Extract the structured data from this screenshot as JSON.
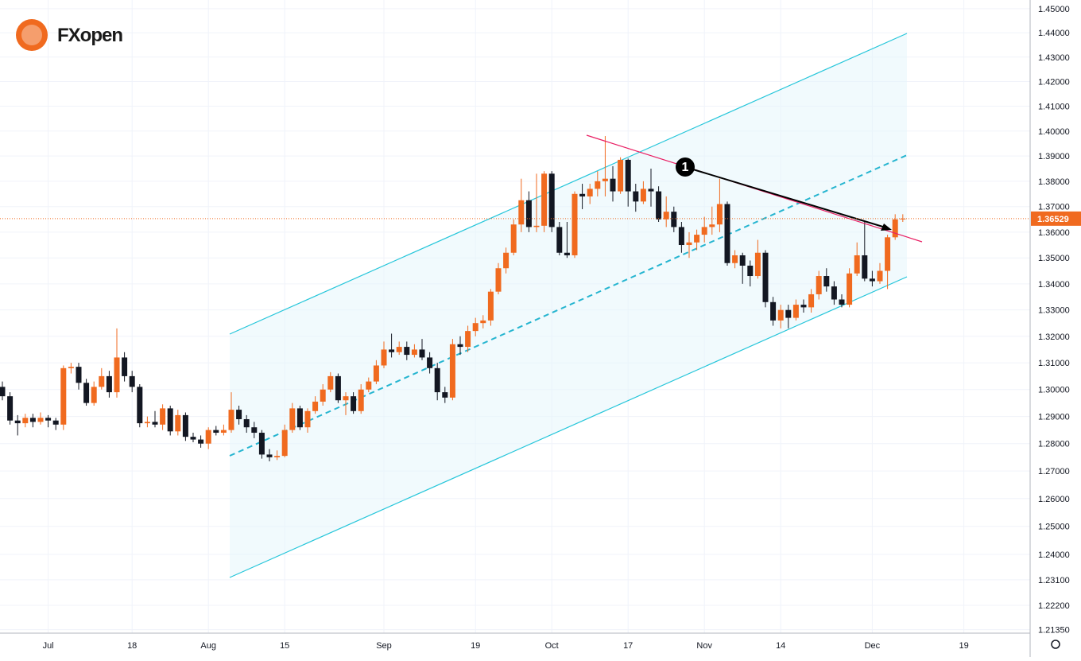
{
  "brand": "FXopen",
  "chart_data": {
    "type": "candlestick",
    "log_scale": true,
    "grid": true,
    "up_color": "#f06a1f",
    "down_color": "#131722",
    "annotation": "1",
    "ylim": [
      1.2123,
      1.4536
    ],
    "yticks": [
      {
        "value": 1.45,
        "label": "1.45000"
      },
      {
        "value": 1.44,
        "label": "1.44000"
      },
      {
        "value": 1.43,
        "label": "1.43000"
      },
      {
        "value": 1.42,
        "label": "1.42000"
      },
      {
        "value": 1.41,
        "label": "1.41000"
      },
      {
        "value": 1.4,
        "label": "1.40000"
      },
      {
        "value": 1.39,
        "label": "1.39000"
      },
      {
        "value": 1.38,
        "label": "1.38000"
      },
      {
        "value": 1.37,
        "label": "1.37000"
      },
      {
        "value": 1.36,
        "label": "1.36000"
      },
      {
        "value": 1.35,
        "label": "1.35000"
      },
      {
        "value": 1.34,
        "label": "1.34000"
      },
      {
        "value": 1.33,
        "label": "1.33000"
      },
      {
        "value": 1.32,
        "label": "1.32000"
      },
      {
        "value": 1.31,
        "label": "1.31000"
      },
      {
        "value": 1.3,
        "label": "1.30000"
      },
      {
        "value": 1.29,
        "label": "1.29000"
      },
      {
        "value": 1.28,
        "label": "1.28000"
      },
      {
        "value": 1.27,
        "label": "1.27000"
      },
      {
        "value": 1.26,
        "label": "1.26000"
      },
      {
        "value": 1.25,
        "label": "1.25000"
      },
      {
        "value": 1.24,
        "label": "1.24000"
      },
      {
        "value": 1.231,
        "label": "1.23100"
      },
      {
        "value": 1.222,
        "label": "1.22200"
      },
      {
        "value": 1.2135,
        "label": "1.21350"
      }
    ],
    "xticks": [
      {
        "value": 6,
        "label": "Jul"
      },
      {
        "value": 17,
        "label": "18"
      },
      {
        "value": 27,
        "label": "Aug"
      },
      {
        "value": 37,
        "label": "15"
      },
      {
        "value": 50,
        "label": "Sep"
      },
      {
        "value": 62,
        "label": "19"
      },
      {
        "value": 72,
        "label": "Oct"
      },
      {
        "value": 82,
        "label": "17"
      },
      {
        "value": 92,
        "label": "Nov"
      },
      {
        "value": 102,
        "label": "14"
      },
      {
        "value": 114,
        "label": "Dec"
      },
      {
        "value": 126,
        "label": "19"
      }
    ],
    "ohlc": [
      [
        1.301,
        1.303,
        1.296,
        1.2975
      ],
      [
        1.2975,
        1.299,
        1.287,
        1.2885
      ],
      [
        1.2885,
        1.2905,
        1.283,
        1.2875
      ],
      [
        1.2875,
        1.291,
        1.286,
        1.2895
      ],
      [
        1.2895,
        1.291,
        1.286,
        1.288
      ],
      [
        1.288,
        1.2915,
        1.287,
        1.2895
      ],
      [
        1.2895,
        1.2905,
        1.286,
        1.2885
      ],
      [
        1.2885,
        1.2895,
        1.285,
        1.287
      ],
      [
        1.287,
        1.309,
        1.285,
        1.308
      ],
      [
        1.308,
        1.31,
        1.306,
        1.3085
      ],
      [
        1.3085,
        1.31,
        1.3,
        1.3025
      ],
      [
        1.3025,
        1.304,
        1.294,
        1.295
      ],
      [
        1.295,
        1.303,
        1.294,
        1.301
      ],
      [
        1.301,
        1.308,
        1.3,
        1.305
      ],
      [
        1.305,
        1.307,
        1.297,
        1.299
      ],
      [
        1.299,
        1.323,
        1.297,
        1.312
      ],
      [
        1.312,
        1.314,
        1.303,
        1.305
      ],
      [
        1.305,
        1.307,
        1.299,
        1.301
      ],
      [
        1.301,
        1.302,
        1.286,
        1.2875
      ],
      [
        1.2875,
        1.29,
        1.286,
        1.288
      ],
      [
        1.288,
        1.292,
        1.286,
        1.287
      ],
      [
        1.287,
        1.2945,
        1.285,
        1.293
      ],
      [
        1.293,
        1.294,
        1.283,
        1.2845
      ],
      [
        1.2845,
        1.2925,
        1.283,
        1.2905
      ],
      [
        1.2905,
        1.2915,
        1.281,
        1.2825
      ],
      [
        1.2825,
        1.284,
        1.2805,
        1.2815
      ],
      [
        1.2815,
        1.283,
        1.2785,
        1.28
      ],
      [
        1.28,
        1.286,
        1.278,
        1.285
      ],
      [
        1.285,
        1.2865,
        1.283,
        1.284
      ],
      [
        1.284,
        1.287,
        1.283,
        1.285
      ],
      [
        1.285,
        1.299,
        1.284,
        1.2925
      ],
      [
        1.2925,
        1.294,
        1.287,
        1.289
      ],
      [
        1.289,
        1.2905,
        1.284,
        1.286
      ],
      [
        1.286,
        1.288,
        1.282,
        1.284
      ],
      [
        1.284,
        1.285,
        1.2745,
        1.276
      ],
      [
        1.276,
        1.278,
        1.2735,
        1.275
      ],
      [
        1.275,
        1.2775,
        1.274,
        1.2755
      ],
      [
        1.2755,
        1.287,
        1.275,
        1.285
      ],
      [
        1.285,
        1.295,
        1.284,
        1.293
      ],
      [
        1.293,
        1.294,
        1.285,
        1.286
      ],
      [
        1.286,
        1.293,
        1.284,
        1.292
      ],
      [
        1.292,
        1.2975,
        1.291,
        1.2955
      ],
      [
        1.2955,
        1.302,
        1.294,
        1.3
      ],
      [
        1.3,
        1.3065,
        1.299,
        1.305
      ],
      [
        1.305,
        1.306,
        1.295,
        1.296
      ],
      [
        1.296,
        1.299,
        1.2905,
        1.2975
      ],
      [
        1.2975,
        1.299,
        1.291,
        1.292
      ],
      [
        1.292,
        1.302,
        1.291,
        1.3
      ],
      [
        1.3,
        1.3045,
        1.299,
        1.303
      ],
      [
        1.303,
        1.311,
        1.302,
        1.309
      ],
      [
        1.309,
        1.318,
        1.308,
        1.315
      ],
      [
        1.315,
        1.321,
        1.312,
        1.314
      ],
      [
        1.314,
        1.318,
        1.313,
        1.316
      ],
      [
        1.316,
        1.318,
        1.311,
        1.313
      ],
      [
        1.313,
        1.317,
        1.312,
        1.315
      ],
      [
        1.315,
        1.319,
        1.311,
        1.312
      ],
      [
        1.312,
        1.314,
        1.306,
        1.308
      ],
      [
        1.308,
        1.31,
        1.296,
        1.299
      ],
      [
        1.299,
        1.301,
        1.295,
        1.297
      ],
      [
        1.297,
        1.319,
        1.296,
        1.317
      ],
      [
        1.317,
        1.32,
        1.313,
        1.316
      ],
      [
        1.316,
        1.324,
        1.314,
        1.322
      ],
      [
        1.322,
        1.327,
        1.32,
        1.325
      ],
      [
        1.325,
        1.328,
        1.323,
        1.326
      ],
      [
        1.326,
        1.338,
        1.324,
        1.337
      ],
      [
        1.337,
        1.348,
        1.336,
        1.346
      ],
      [
        1.346,
        1.354,
        1.344,
        1.352
      ],
      [
        1.352,
        1.365,
        1.351,
        1.363
      ],
      [
        1.363,
        1.381,
        1.36,
        1.3725
      ],
      [
        1.3725,
        1.376,
        1.36,
        1.362
      ],
      [
        1.362,
        1.383,
        1.36,
        1.3625
      ],
      [
        1.3625,
        1.384,
        1.36,
        1.383
      ],
      [
        1.383,
        1.384,
        1.36,
        1.362
      ],
      [
        1.362,
        1.364,
        1.351,
        1.352
      ],
      [
        1.352,
        1.364,
        1.35,
        1.351
      ],
      [
        1.351,
        1.376,
        1.35,
        1.375
      ],
      [
        1.375,
        1.379,
        1.369,
        1.374
      ],
      [
        1.374,
        1.379,
        1.371,
        1.377
      ],
      [
        1.377,
        1.384,
        1.374,
        1.38
      ],
      [
        1.38,
        1.398,
        1.374,
        1.381
      ],
      [
        1.381,
        1.386,
        1.372,
        1.376
      ],
      [
        1.376,
        1.3895,
        1.375,
        1.3885
      ],
      [
        1.3885,
        1.389,
        1.37,
        1.376
      ],
      [
        1.376,
        1.379,
        1.368,
        1.372
      ],
      [
        1.372,
        1.38,
        1.371,
        1.377
      ],
      [
        1.377,
        1.385,
        1.37,
        1.376
      ],
      [
        1.376,
        1.378,
        1.364,
        1.365
      ],
      [
        1.365,
        1.374,
        1.362,
        1.368
      ],
      [
        1.368,
        1.37,
        1.36,
        1.362
      ],
      [
        1.362,
        1.364,
        1.352,
        1.355
      ],
      [
        1.355,
        1.36,
        1.35,
        1.356
      ],
      [
        1.356,
        1.361,
        1.353,
        1.359
      ],
      [
        1.359,
        1.366,
        1.356,
        1.362
      ],
      [
        1.362,
        1.37,
        1.359,
        1.363
      ],
      [
        1.363,
        1.381,
        1.36,
        1.371
      ],
      [
        1.371,
        1.372,
        1.347,
        1.348
      ],
      [
        1.348,
        1.353,
        1.346,
        1.351
      ],
      [
        1.351,
        1.352,
        1.34,
        1.347
      ],
      [
        1.347,
        1.349,
        1.339,
        1.343
      ],
      [
        1.343,
        1.357,
        1.342,
        1.352
      ],
      [
        1.352,
        1.353,
        1.331,
        1.333
      ],
      [
        1.333,
        1.335,
        1.324,
        1.326
      ],
      [
        1.326,
        1.332,
        1.323,
        1.33
      ],
      [
        1.33,
        1.332,
        1.323,
        1.327
      ],
      [
        1.327,
        1.334,
        1.326,
        1.332
      ],
      [
        1.332,
        1.334,
        1.329,
        1.331
      ],
      [
        1.331,
        1.338,
        1.329,
        1.336
      ],
      [
        1.336,
        1.345,
        1.334,
        1.343
      ],
      [
        1.343,
        1.346,
        1.337,
        1.339
      ],
      [
        1.339,
        1.341,
        1.332,
        1.334
      ],
      [
        1.334,
        1.336,
        1.331,
        1.332
      ],
      [
        1.332,
        1.346,
        1.331,
        1.344
      ],
      [
        1.344,
        1.356,
        1.343,
        1.351
      ],
      [
        1.351,
        1.364,
        1.341,
        1.342
      ],
      [
        1.342,
        1.345,
        1.339,
        1.341
      ],
      [
        1.341,
        1.348,
        1.34,
        1.345
      ],
      [
        1.345,
        1.359,
        1.338,
        1.358
      ],
      [
        1.358,
        1.367,
        1.357,
        1.365
      ],
      [
        1.365,
        1.367,
        1.364,
        1.36529
      ]
    ]
  }
}
